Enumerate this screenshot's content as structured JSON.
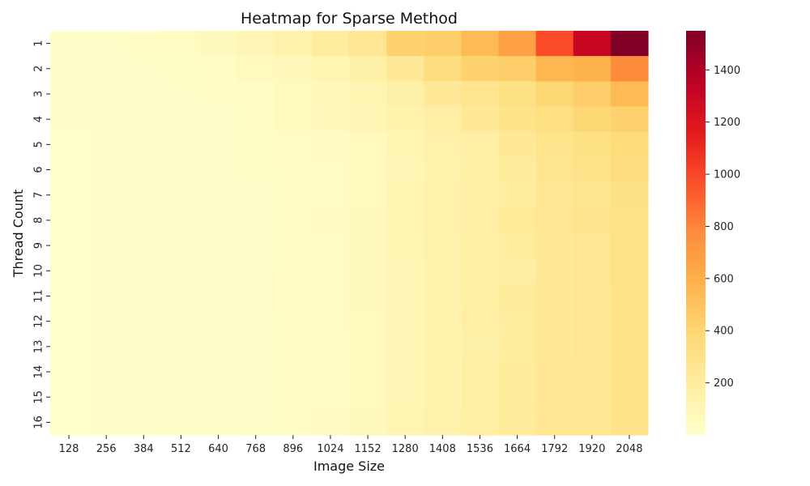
{
  "chart_data": {
    "type": "heatmap",
    "title": "Heatmap for Sparse Method",
    "xlabel": "Image Size",
    "ylabel": "Thread Count",
    "x_categories": [
      "128",
      "256",
      "384",
      "512",
      "640",
      "768",
      "896",
      "1024",
      "1152",
      "1280",
      "1408",
      "1536",
      "1664",
      "1792",
      "1920",
      "2048"
    ],
    "y_categories": [
      "1",
      "2",
      "3",
      "4",
      "5",
      "6",
      "7",
      "8",
      "9",
      "10",
      "11",
      "12",
      "13",
      "14",
      "15",
      "16"
    ],
    "values": [
      [
        15,
        20,
        30,
        45,
        70,
        100,
        140,
        200,
        260,
        420,
        440,
        540,
        680,
        980,
        1300,
        1550
      ],
      [
        10,
        12,
        18,
        25,
        35,
        60,
        80,
        110,
        160,
        230,
        350,
        420,
        440,
        560,
        580,
        780
      ],
      [
        8,
        10,
        14,
        20,
        30,
        40,
        60,
        80,
        110,
        160,
        230,
        270,
        320,
        390,
        450,
        540
      ],
      [
        8,
        10,
        12,
        16,
        24,
        35,
        55,
        80,
        100,
        140,
        180,
        230,
        290,
        330,
        390,
        420
      ],
      [
        5,
        8,
        10,
        12,
        18,
        25,
        40,
        50,
        60,
        110,
        150,
        180,
        230,
        280,
        320,
        360
      ],
      [
        5,
        8,
        10,
        12,
        18,
        25,
        35,
        40,
        60,
        100,
        140,
        170,
        210,
        270,
        300,
        350
      ],
      [
        5,
        8,
        10,
        12,
        16,
        22,
        35,
        40,
        60,
        110,
        150,
        170,
        200,
        250,
        270,
        310
      ],
      [
        5,
        8,
        10,
        12,
        16,
        22,
        35,
        50,
        70,
        110,
        150,
        180,
        220,
        260,
        280,
        300
      ],
      [
        5,
        8,
        10,
        12,
        16,
        22,
        35,
        45,
        70,
        110,
        140,
        170,
        200,
        240,
        260,
        300
      ],
      [
        5,
        8,
        10,
        12,
        16,
        22,
        35,
        45,
        70,
        100,
        140,
        170,
        190,
        240,
        260,
        300
      ],
      [
        5,
        8,
        10,
        12,
        16,
        22,
        40,
        45,
        70,
        100,
        140,
        170,
        210,
        240,
        260,
        290
      ],
      [
        5,
        8,
        10,
        12,
        16,
        22,
        30,
        40,
        60,
        100,
        130,
        180,
        200,
        240,
        260,
        290
      ],
      [
        5,
        8,
        10,
        12,
        16,
        22,
        30,
        35,
        60,
        100,
        130,
        160,
        200,
        240,
        260,
        290
      ],
      [
        5,
        8,
        10,
        12,
        16,
        22,
        30,
        35,
        60,
        100,
        130,
        170,
        210,
        250,
        260,
        290
      ],
      [
        5,
        8,
        10,
        12,
        16,
        22,
        30,
        35,
        60,
        100,
        130,
        170,
        210,
        250,
        260,
        290
      ],
      [
        5,
        8,
        10,
        12,
        16,
        22,
        30,
        50,
        70,
        110,
        140,
        170,
        210,
        250,
        260,
        290
      ]
    ],
    "colormap": "YlOrRd",
    "colorbar": {
      "min": 0,
      "max": 1550,
      "ticks": [
        200,
        400,
        600,
        800,
        1000,
        1200,
        1400
      ]
    },
    "grid": false
  }
}
